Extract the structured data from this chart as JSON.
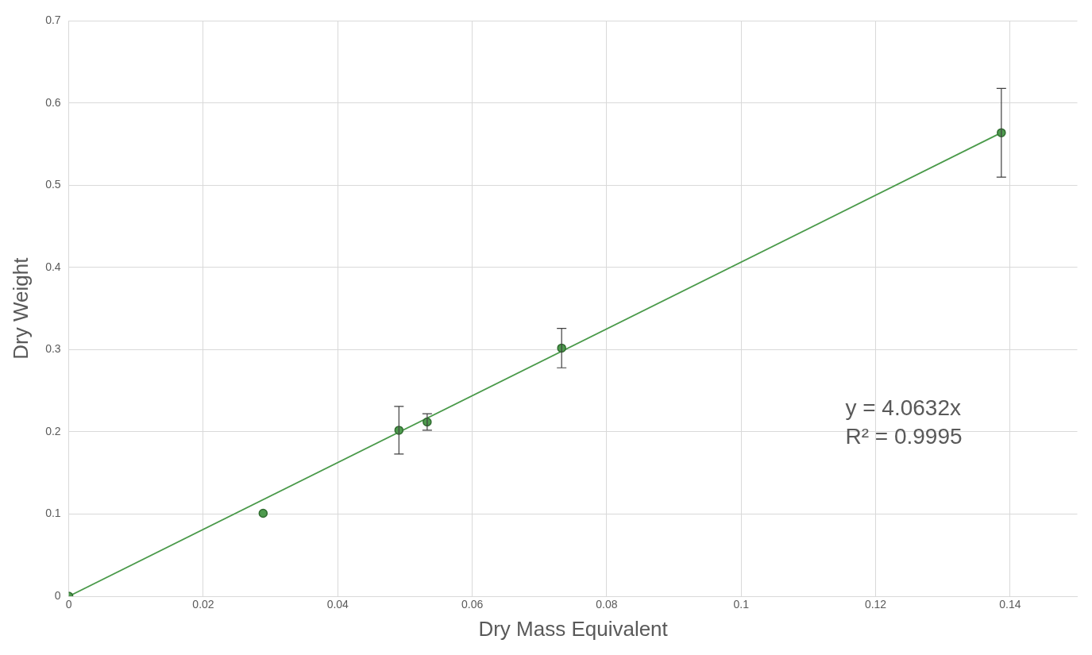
{
  "chart_data": {
    "type": "scatter",
    "xlabel": "Dry Mass Equivalent",
    "ylabel": "Dry Weight",
    "xlim": [
      0,
      0.15
    ],
    "xticks": [
      0,
      0.02,
      0.04,
      0.06,
      0.08,
      {
        "value": 0.1,
        "label": "0.1"
      },
      0.12,
      0.14
    ],
    "ylim": [
      0,
      0.7
    ],
    "yticks": [
      0,
      0.1,
      0.2,
      0.3,
      0.4,
      0.5,
      0.6,
      0.7
    ],
    "grid": true,
    "legend": false,
    "marker": "circle",
    "series": [
      {
        "type": "scatter",
        "color": "#4e9a4e",
        "x": [
          0,
          0.0289,
          0.0491,
          0.0533,
          0.0733,
          0.1387
        ],
        "values": [
          0,
          0.101,
          0.202,
          0.212,
          0.302,
          0.564
        ],
        "errors": [
          null,
          null,
          0.029,
          0.01,
          0.024,
          0.054
        ]
      },
      {
        "type": "line",
        "color": "#4a9a4a",
        "x": [
          0,
          0.1387
        ],
        "values": [
          0,
          0.564
        ],
        "marker": "none",
        "line_style": "solid"
      }
    ],
    "annotations": [
      "y = 4.0632x",
      "R² = 0.9995"
    ]
  }
}
